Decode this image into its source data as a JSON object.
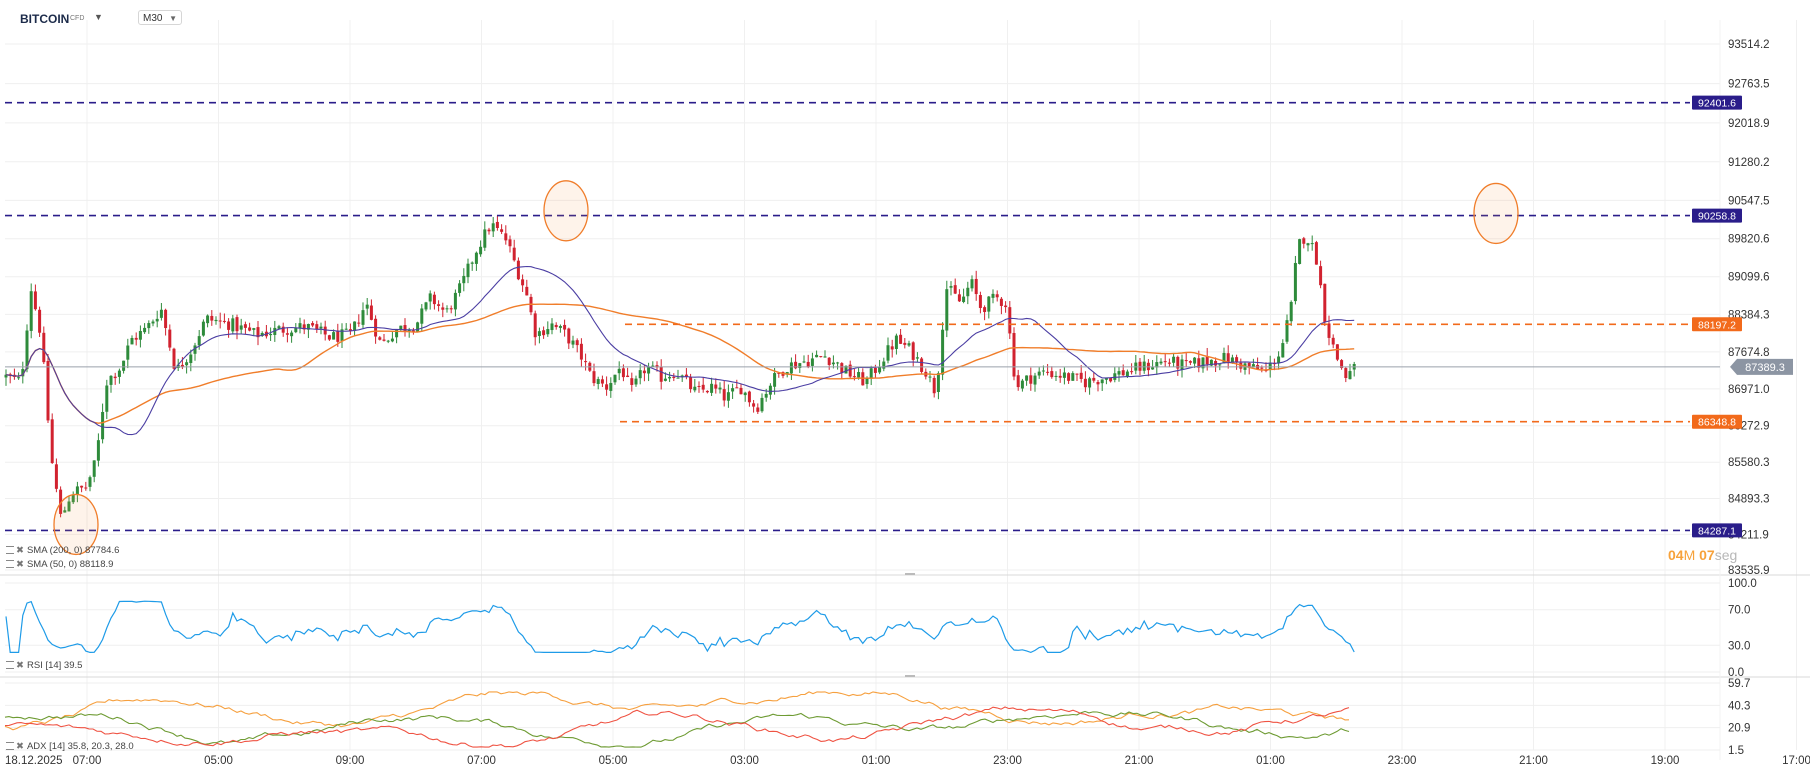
{
  "header": {
    "symbol": "BITCOIN",
    "symbol_sub": "CFD",
    "timeframe": "M30"
  },
  "indicators": {
    "sma200_label": "SMA (200, 0) 87784.6",
    "sma50_label": "SMA (50, 0) 88118.9",
    "rsi_label": "RSI [14] 39.5",
    "adx_label": "ADX [14] 35.8, 20.3, 28.0"
  },
  "timer": {
    "minutes": "04",
    "m": "M",
    "seconds": "07",
    "seg": "seg"
  },
  "colors": {
    "up": "#2e8b3b",
    "down": "#d1222f",
    "sma200": "#f07d2a",
    "sma50": "#4b3ea3",
    "dark_line": "#2a1d8a",
    "orange_line": "#f26a1b",
    "rsi": "#1e9be8",
    "adx_red": "#ef5343",
    "adx_green": "#6e9b33",
    "adx_orange": "#f6a03f",
    "current_price_badge": "#8c95a3"
  },
  "chart_data": [
    {
      "type": "candlestick",
      "title": "BITCOIN CFD M30",
      "x_tick_labels": [
        "18.12.2025",
        "07:00",
        "05:00",
        "09:00",
        "07:00",
        "05:00",
        "03:00",
        "01:00",
        "23:00",
        "21:00",
        "01:00",
        "23:00",
        "21:00",
        "19:00",
        "17:00"
      ],
      "y_tick_labels": [
        "93514.2",
        "92763.5",
        "92018.9",
        "91280.2",
        "90547.5",
        "89820.6",
        "89099.6",
        "88384.3",
        "87674.8",
        "86971.0",
        "86272.9",
        "85580.3",
        "84893.3",
        "84211.9",
        "83535.9"
      ],
      "ylim": [
        83535.9,
        93514.2
      ],
      "grid": true,
      "horizontal_levels": [
        {
          "value": 92401.6,
          "label": "92401.6",
          "color": "#2a1d8a",
          "style": "dashed"
        },
        {
          "value": 90258.8,
          "label": "90258.8",
          "color": "#2a1d8a",
          "style": "dashed"
        },
        {
          "value": 88197.2,
          "label": "88197.2",
          "color": "#f26a1b",
          "style": "dashed"
        },
        {
          "value": 86348.8,
          "label": "86348.8",
          "color": "#f26a1b",
          "style": "dashed"
        },
        {
          "value": 84287.1,
          "label": "84287.1",
          "color": "#2a1d8a",
          "style": "dashed"
        }
      ],
      "current_price": {
        "value": 87389.3,
        "label": "87389.3"
      },
      "highlight_circles_at_price": [
        84400,
        90350,
        90300
      ],
      "series": [
        {
          "name": "SMA (200, 0)",
          "last_value": 87784.6
        },
        {
          "name": "SMA (50, 0)",
          "last_value": 88118.9
        }
      ],
      "close_path": [
        [
          0,
          87200
        ],
        [
          15,
          87100
        ],
        [
          25,
          88900
        ],
        [
          35,
          88000
        ],
        [
          45,
          85700
        ],
        [
          55,
          84500
        ],
        [
          65,
          85000
        ],
        [
          80,
          85100
        ],
        [
          90,
          85600
        ],
        [
          100,
          87100
        ],
        [
          115,
          87400
        ],
        [
          125,
          87900
        ],
        [
          140,
          88100
        ],
        [
          155,
          88500
        ],
        [
          170,
          87300
        ],
        [
          185,
          87700
        ],
        [
          200,
          88300
        ],
        [
          225,
          88200
        ],
        [
          250,
          88000
        ],
        [
          275,
          88100
        ],
        [
          300,
          88150
        ],
        [
          325,
          87950
        ],
        [
          345,
          88000
        ],
        [
          360,
          88600
        ],
        [
          375,
          87800
        ],
        [
          390,
          88100
        ],
        [
          410,
          88200
        ],
        [
          425,
          88700
        ],
        [
          440,
          88400
        ],
        [
          455,
          88900
        ],
        [
          470,
          89600
        ],
        [
          485,
          90100
        ],
        [
          500,
          89800
        ],
        [
          510,
          89300
        ],
        [
          520,
          88800
        ],
        [
          530,
          88000
        ],
        [
          545,
          88200
        ],
        [
          560,
          88000
        ],
        [
          575,
          87600
        ],
        [
          585,
          87200
        ],
        [
          600,
          87000
        ],
        [
          615,
          87400
        ],
        [
          625,
          86900
        ],
        [
          640,
          87400
        ],
        [
          655,
          87200
        ],
        [
          670,
          87300
        ],
        [
          690,
          86900
        ],
        [
          705,
          87000
        ],
        [
          720,
          86800
        ],
        [
          735,
          87000
        ],
        [
          750,
          86600
        ],
        [
          765,
          87100
        ],
        [
          780,
          87400
        ],
        [
          800,
          87500
        ],
        [
          820,
          87600
        ],
        [
          840,
          87300
        ],
        [
          860,
          87100
        ],
        [
          875,
          87500
        ],
        [
          890,
          87900
        ],
        [
          905,
          87700
        ],
        [
          920,
          87300
        ],
        [
          930,
          86900
        ],
        [
          940,
          88900
        ],
        [
          955,
          88600
        ],
        [
          965,
          89000
        ],
        [
          975,
          88500
        ],
        [
          990,
          88700
        ],
        [
          1000,
          88600
        ],
        [
          1010,
          87000
        ],
        [
          1025,
          87200
        ],
        [
          1040,
          87300
        ],
        [
          1060,
          87200
        ],
        [
          1080,
          87100
        ],
        [
          1100,
          87200
        ],
        [
          1120,
          87300
        ],
        [
          1140,
          87400
        ],
        [
          1160,
          87500
        ],
        [
          1180,
          87400
        ],
        [
          1200,
          87500
        ],
        [
          1220,
          87550
        ],
        [
          1240,
          87400
        ],
        [
          1260,
          87300
        ],
        [
          1275,
          87700
        ],
        [
          1285,
          88500
        ],
        [
          1292,
          89700
        ],
        [
          1300,
          89900
        ],
        [
          1310,
          89500
        ],
        [
          1320,
          88200
        ],
        [
          1330,
          87600
        ],
        [
          1340,
          87200
        ],
        [
          1350,
          87389.3
        ]
      ]
    },
    {
      "type": "line",
      "title": "RSI [14]",
      "y_tick_labels": [
        "100.0",
        "70.0",
        "30.0",
        "0.0"
      ],
      "ylim": [
        0,
        100
      ],
      "series": [
        {
          "name": "RSI [14]",
          "last_value": 39.5
        }
      ]
    },
    {
      "type": "line",
      "title": "ADX [14]",
      "y_tick_labels": [
        "59.7",
        "40.3",
        "20.9",
        "1.5"
      ],
      "ylim": [
        1.5,
        59.7
      ],
      "series": [
        {
          "name": "ADX",
          "last_value": 35.8
        },
        {
          "name": "+DI",
          "last_value": 20.3
        },
        {
          "name": "-DI",
          "last_value": 28.0
        }
      ]
    }
  ]
}
